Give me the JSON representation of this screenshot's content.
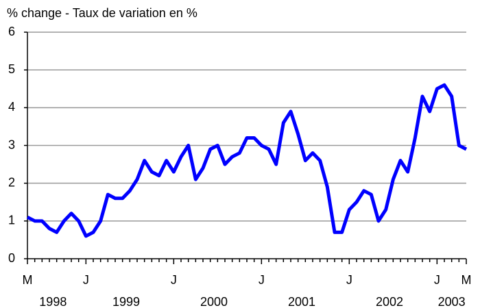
{
  "chart_data": {
    "type": "line",
    "title": "% change - Taux de variation en %",
    "categories": [
      "M",
      null,
      null,
      null,
      null,
      null,
      null,
      null,
      "J",
      null,
      null,
      null,
      null,
      null,
      null,
      null,
      null,
      null,
      null,
      null,
      "J",
      null,
      null,
      null,
      null,
      null,
      null,
      null,
      null,
      null,
      null,
      null,
      "J",
      null,
      null,
      null,
      null,
      null,
      null,
      null,
      null,
      null,
      null,
      null,
      "J",
      null,
      null,
      null,
      null,
      null,
      null,
      null,
      null,
      null,
      null,
      null,
      "J",
      null,
      null,
      null,
      "M"
    ],
    "years": [
      "1998",
      "1999",
      "2000",
      "2001",
      "2002",
      "2003"
    ],
    "series": [
      {
        "name": "% change",
        "color": "#0000ff",
        "values": [
          1.1,
          1.0,
          1.0,
          0.8,
          0.7,
          1.0,
          1.2,
          1.0,
          0.6,
          0.7,
          1.0,
          1.7,
          1.6,
          1.6,
          1.8,
          2.1,
          2.6,
          2.3,
          2.2,
          2.6,
          2.3,
          2.7,
          3.0,
          2.1,
          2.4,
          2.9,
          3.0,
          2.5,
          2.7,
          2.8,
          3.2,
          3.2,
          3.0,
          2.9,
          2.5,
          3.6,
          3.9,
          3.3,
          2.6,
          2.8,
          2.6,
          1.9,
          0.7,
          0.7,
          1.3,
          1.5,
          1.8,
          1.7,
          1.0,
          1.3,
          2.1,
          2.6,
          2.3,
          3.2,
          4.3,
          3.9,
          4.5,
          4.6,
          4.3,
          3.0,
          2.9
        ]
      }
    ],
    "ylim": [
      0,
      6
    ],
    "yticks": [
      0,
      1,
      2,
      3,
      4,
      5,
      6
    ],
    "grid": true
  }
}
